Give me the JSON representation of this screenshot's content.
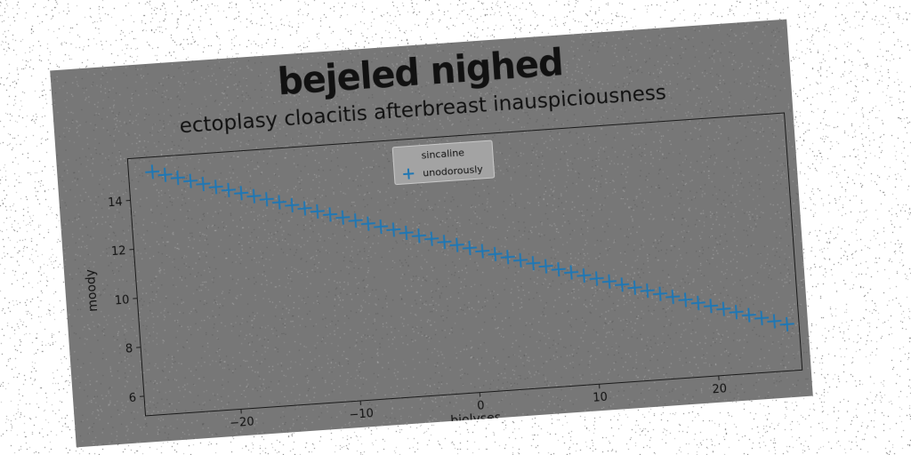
{
  "figure": {
    "suptitle": "bejeled nighed",
    "background_color": "#777777"
  },
  "chart_data": {
    "type": "scatter",
    "title": "ectoplasy cloacitis afterbreast inauspiciousness",
    "xlabel": "biolyses",
    "ylabel": "moody",
    "xlim": [
      -28,
      27
    ],
    "ylim": [
      5.2,
      15.7
    ],
    "xticks": [
      -20,
      -10,
      0,
      10,
      20
    ],
    "xtick_labels": [
      "−20",
      "−10",
      "0",
      "10",
      "20"
    ],
    "yticks": [
      6,
      8,
      10,
      12,
      14
    ],
    "ytick_labels": [
      "6",
      "8",
      "10",
      "12",
      "14"
    ],
    "grid": false,
    "legend": {
      "title": "sincaline",
      "placement": "upper-center"
    },
    "marker": "plus",
    "series": [
      {
        "name": "unodorously",
        "color": "#1f77b4",
        "x": [
          -26.0,
          -24.96,
          -23.92,
          -22.88,
          -21.84,
          -20.8,
          -19.76,
          -18.72,
          -17.68,
          -16.64,
          -15.6,
          -14.56,
          -13.52,
          -12.48,
          -11.44,
          -10.4,
          -9.36,
          -8.32,
          -7.28,
          -6.24,
          -5.2,
          -4.16,
          -3.12,
          -2.08,
          -1.04,
          0.0,
          1.04,
          2.08,
          3.12,
          4.16,
          5.2,
          6.24,
          7.28,
          8.32,
          9.36,
          10.4,
          11.44,
          12.48,
          13.52,
          14.56,
          15.6,
          16.64,
          17.68,
          18.72,
          19.76,
          20.8,
          21.84,
          22.88,
          23.92,
          24.96,
          26.0
        ],
        "y": [
          15.1,
          14.94,
          14.78,
          14.62,
          14.46,
          14.3,
          14.14,
          13.98,
          13.82,
          13.66,
          13.5,
          13.34,
          13.18,
          13.02,
          12.86,
          12.7,
          12.54,
          12.38,
          12.22,
          12.06,
          11.9,
          11.74,
          11.58,
          11.42,
          11.26,
          11.1,
          10.94,
          10.78,
          10.62,
          10.46,
          10.3,
          10.14,
          9.98,
          9.82,
          9.66,
          9.5,
          9.34,
          9.18,
          9.02,
          8.86,
          8.7,
          8.54,
          8.38,
          8.22,
          8.06,
          7.9,
          7.74,
          7.58,
          7.42,
          7.26,
          7.1
        ]
      }
    ]
  }
}
